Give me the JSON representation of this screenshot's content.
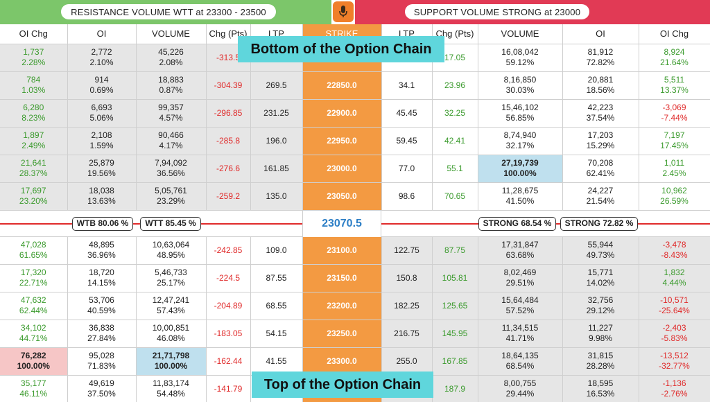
{
  "banners": {
    "left": "RESISTANCE VOLUME WTT at 23300 - 23500",
    "right": "SUPPORT VOLUME STRONG at 23000"
  },
  "icons": {
    "mic": "microphone-icon"
  },
  "overlays": {
    "top": "Bottom of the Option Chain",
    "bottom": "Top of the Option Chain"
  },
  "headers": [
    "OI Chg",
    "OI",
    "VOLUME",
    "Chg (Pts)",
    "LTP",
    "STRIKE",
    "LTP",
    "Chg (Pts)",
    "VOLUME",
    "OI",
    "OI Chg"
  ],
  "rows_above": [
    {
      "c_oichg": "1,737",
      "c_oichg_p": "2.28%",
      "c_oi": "2,772",
      "c_oi_p": "2.10%",
      "c_vol": "45,226",
      "c_vol_p": "2.08%",
      "c_chg": "-313.5",
      "c_ltp": "",
      "strike": "",
      "p_ltp": "",
      "p_chg": "17.05",
      "p_vol": "16,08,042",
      "p_vol_p": "59.12%",
      "p_oi": "81,912",
      "p_oi_p": "72.82%",
      "p_oichg": "8,924",
      "p_oichg_p": "21.64%"
    },
    {
      "c_oichg": "784",
      "c_oichg_p": "1.03%",
      "c_oi": "914",
      "c_oi_p": "0.69%",
      "c_vol": "18,883",
      "c_vol_p": "0.87%",
      "c_chg": "-304.39",
      "c_ltp": "269.5",
      "strike": "22850.0",
      "p_ltp": "34.1",
      "p_chg": "23.96",
      "p_vol": "8,16,850",
      "p_vol_p": "30.03%",
      "p_oi": "20,881",
      "p_oi_p": "18.56%",
      "p_oichg": "5,511",
      "p_oichg_p": "13.37%"
    },
    {
      "c_oichg": "6,280",
      "c_oichg_p": "8.23%",
      "c_oi": "6,693",
      "c_oi_p": "5.06%",
      "c_vol": "99,357",
      "c_vol_p": "4.57%",
      "c_chg": "-296.85",
      "c_ltp": "231.25",
      "strike": "22900.0",
      "p_ltp": "45.45",
      "p_chg": "32.25",
      "p_vol": "15,46,102",
      "p_vol_p": "56.85%",
      "p_oi": "42,223",
      "p_oi_p": "37.54%",
      "p_oichg": "-3,069",
      "p_oichg_p": "-7.44%"
    },
    {
      "c_oichg": "1,897",
      "c_oichg_p": "2.49%",
      "c_oi": "2,108",
      "c_oi_p": "1.59%",
      "c_vol": "90,466",
      "c_vol_p": "4.17%",
      "c_chg": "-285.8",
      "c_ltp": "196.0",
      "strike": "22950.0",
      "p_ltp": "59.45",
      "p_chg": "42.41",
      "p_vol": "8,74,940",
      "p_vol_p": "32.17%",
      "p_oi": "17,203",
      "p_oi_p": "15.29%",
      "p_oichg": "7,197",
      "p_oichg_p": "17.45%"
    },
    {
      "c_oichg": "21,641",
      "c_oichg_p": "28.37%",
      "c_oi": "25,879",
      "c_oi_p": "19.56%",
      "c_vol": "7,94,092",
      "c_vol_p": "36.56%",
      "c_chg": "-276.6",
      "c_ltp": "161.85",
      "strike": "23000.0",
      "p_ltp": "77.0",
      "p_chg": "55.1",
      "p_vol": "27,19,739",
      "p_vol_p": "100.00%",
      "p_oi": "70,208",
      "p_oi_p": "62.41%",
      "p_oichg": "1,011",
      "p_oichg_p": "2.45%"
    },
    {
      "c_oichg": "17,697",
      "c_oichg_p": "23.20%",
      "c_oi": "18,038",
      "c_oi_p": "13.63%",
      "c_vol": "5,05,761",
      "c_vol_p": "23.29%",
      "c_chg": "-259.2",
      "c_ltp": "135.0",
      "strike": "23050.0",
      "p_ltp": "98.6",
      "p_chg": "70.65",
      "p_vol": "11,28,675",
      "p_vol_p": "41.50%",
      "p_oi": "24,227",
      "p_oi_p": "21.54%",
      "p_oichg": "10,962",
      "p_oichg_p": "26.59%"
    }
  ],
  "spot": {
    "price": "23070.5",
    "wtb": "WTB 80.06 %",
    "wtt": "WTT 85.45 %",
    "strong1": "STRONG 68.54 %",
    "strong2": "STRONG 72.82 %"
  },
  "rows_below": [
    {
      "c_oichg": "47,028",
      "c_oichg_p": "61.65%",
      "c_oi": "48,895",
      "c_oi_p": "36.96%",
      "c_vol": "10,63,064",
      "c_vol_p": "48.95%",
      "c_chg": "-242.85",
      "c_ltp": "109.0",
      "strike": "23100.0",
      "p_ltp": "122.75",
      "p_chg": "87.75",
      "p_vol": "17,31,847",
      "p_vol_p": "63.68%",
      "p_oi": "55,944",
      "p_oi_p": "49.73%",
      "p_oichg": "-3,478",
      "p_oichg_p": "-8.43%"
    },
    {
      "c_oichg": "17,320",
      "c_oichg_p": "22.71%",
      "c_oi": "18,720",
      "c_oi_p": "14.15%",
      "c_vol": "5,46,733",
      "c_vol_p": "25.17%",
      "c_chg": "-224.5",
      "c_ltp": "87.55",
      "strike": "23150.0",
      "p_ltp": "150.8",
      "p_chg": "105.81",
      "p_vol": "8,02,469",
      "p_vol_p": "29.51%",
      "p_oi": "15,771",
      "p_oi_p": "14.02%",
      "p_oichg": "1,832",
      "p_oichg_p": "4.44%"
    },
    {
      "c_oichg": "47,632",
      "c_oichg_p": "62.44%",
      "c_oi": "53,706",
      "c_oi_p": "40.59%",
      "c_vol": "12,47,241",
      "c_vol_p": "57.43%",
      "c_chg": "-204.89",
      "c_ltp": "68.55",
      "strike": "23200.0",
      "p_ltp": "182.25",
      "p_chg": "125.65",
      "p_vol": "15,64,484",
      "p_vol_p": "57.52%",
      "p_oi": "32,756",
      "p_oi_p": "29.12%",
      "p_oichg": "-10,571",
      "p_oichg_p": "-25.64%"
    },
    {
      "c_oichg": "34,102",
      "c_oichg_p": "44.71%",
      "c_oi": "36,838",
      "c_oi_p": "27.84%",
      "c_vol": "10,00,851",
      "c_vol_p": "46.08%",
      "c_chg": "-183.05",
      "c_ltp": "54.15",
      "strike": "23250.0",
      "p_ltp": "216.75",
      "p_chg": "145.95",
      "p_vol": "11,34,515",
      "p_vol_p": "41.71%",
      "p_oi": "11,227",
      "p_oi_p": "9.98%",
      "p_oichg": "-2,403",
      "p_oichg_p": "-5.83%"
    },
    {
      "c_oichg": "76,282",
      "c_oichg_p": "100.00%",
      "c_oi": "95,028",
      "c_oi_p": "71.83%",
      "c_vol": "21,71,798",
      "c_vol_p": "100.00%",
      "c_chg": "-162.44",
      "c_ltp": "41.55",
      "strike": "23300.0",
      "p_ltp": "255.0",
      "p_chg": "167.85",
      "p_vol": "18,64,135",
      "p_vol_p": "68.54%",
      "p_oi": "31,815",
      "p_oi_p": "28.28%",
      "p_oichg": "-13,512",
      "p_oichg_p": "-32.77%"
    },
    {
      "c_oichg": "35,177",
      "c_oichg_p": "46.11%",
      "c_oi": "49,619",
      "c_oi_p": "37.50%",
      "c_vol": "11,83,174",
      "c_vol_p": "54.48%",
      "c_chg": "-141.79",
      "c_ltp": "",
      "strike": "",
      "p_ltp": "",
      "p_chg": "187.9",
      "p_vol": "8,00,755",
      "p_vol_p": "29.44%",
      "p_oi": "18,595",
      "p_oi_p": "16.53%",
      "p_oichg": "-1,136",
      "p_oichg_p": "-2.76%"
    }
  ]
}
